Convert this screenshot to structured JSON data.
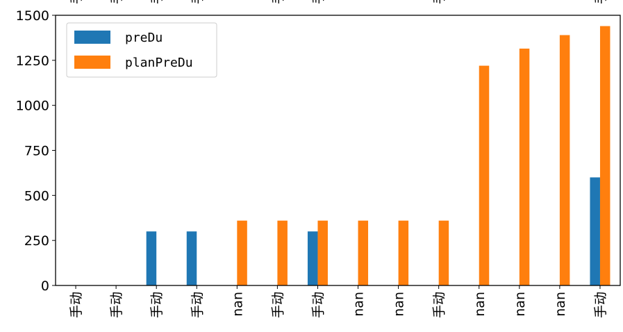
{
  "chart_data": {
    "type": "bar",
    "categories": [
      "手动",
      "手动",
      "手动",
      "手动",
      "nan",
      "手动",
      "手动",
      "nan",
      "nan",
      "手动",
      "nan",
      "nan",
      "nan",
      "手动"
    ],
    "top_categories": [
      "手",
      "手",
      "手",
      "手",
      "",
      "手",
      "手",
      "",
      "",
      "手",
      "",
      "",
      "",
      "手"
    ],
    "series": [
      {
        "name": "preDu",
        "color": "#1f77b4",
        "values": [
          0,
          0,
          300,
          300,
          0,
          0,
          300,
          0,
          0,
          0,
          0,
          0,
          0,
          600
        ]
      },
      {
        "name": "planPreDu",
        "color": "#ff7f0e",
        "values": [
          0,
          0,
          0,
          0,
          360,
          360,
          360,
          360,
          360,
          360,
          1220,
          1315,
          1390,
          1440
        ]
      }
    ],
    "yticks": [
      "0",
      "250",
      "500",
      "750",
      "1000",
      "1250",
      "1500"
    ],
    "ylim": [
      0,
      1500
    ],
    "legend_position": "upper-left",
    "grid": false
  }
}
